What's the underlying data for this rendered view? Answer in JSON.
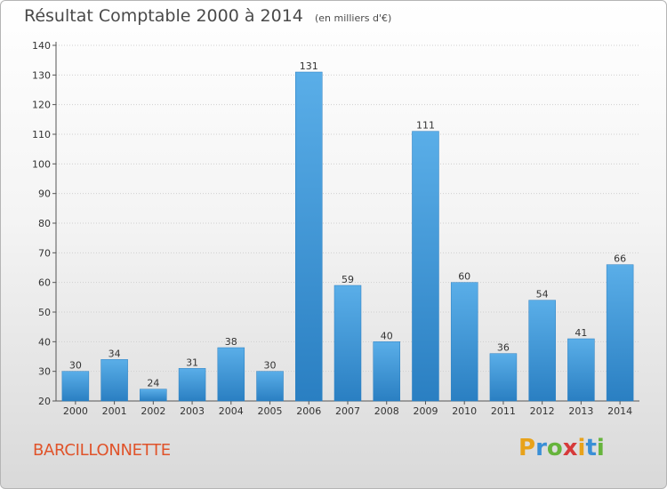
{
  "title": "Résultat Comptable 2000 à 2014",
  "subtitle": "(en milliers d'€)",
  "commune": "BARCILLONNETTE",
  "brand": {
    "letters": [
      "P",
      "r",
      "o",
      "x",
      "i",
      "t",
      "i"
    ],
    "colors": [
      "#e8a21a",
      "#3a8fd6",
      "#66b43c",
      "#d63a3a",
      "#e8a21a",
      "#3a8fd6",
      "#66b43c"
    ]
  },
  "colors": {
    "bar_light": "#5aaee8",
    "bar_dark": "#2a7fc2",
    "grid": "#cccccc",
    "commune": "#e0532a"
  },
  "chart_data": {
    "type": "bar",
    "categories": [
      "2000",
      "2001",
      "2002",
      "2003",
      "2004",
      "2005",
      "2006",
      "2007",
      "2008",
      "2009",
      "2010",
      "2011",
      "2012",
      "2013",
      "2014"
    ],
    "values": [
      30,
      34,
      24,
      31,
      38,
      30,
      131,
      59,
      40,
      111,
      60,
      36,
      54,
      41,
      66
    ],
    "yticks": [
      20,
      30,
      40,
      50,
      60,
      70,
      80,
      90,
      100,
      110,
      120,
      130,
      140
    ],
    "ylim": [
      20,
      140
    ],
    "grid": true,
    "xlabel": "",
    "ylabel": ""
  }
}
